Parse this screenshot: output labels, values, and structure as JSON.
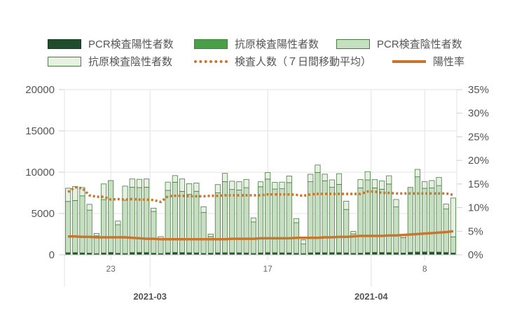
{
  "chart_data": {
    "type": "bar",
    "legend": {
      "pcr_pos": "PCR検査陽性者数",
      "ag_pos": "抗原検査陽性者数",
      "pcr_neg": "PCR検査陰性者数",
      "ag_neg": "抗原検査陰性者数",
      "tests7": "検査人数（７日間移動平均）",
      "rate": "陽性率"
    },
    "colors": {
      "pcr_pos": "#1f4d2c",
      "ag_pos": "#4a9e4a",
      "pcr_neg": "#c5dfc0",
      "ag_neg": "#e6f1e2",
      "border": "#4a7a44",
      "line": "#c8762e"
    },
    "x": [
      "2021-02-17",
      "2021-02-18",
      "2021-02-19",
      "2021-02-20",
      "2021-02-21",
      "2021-02-22",
      "2021-02-23",
      "2021-02-24",
      "2021-02-25",
      "2021-02-26",
      "2021-02-27",
      "2021-02-28",
      "2021-03-01",
      "2021-03-02",
      "2021-03-03",
      "2021-03-04",
      "2021-03-05",
      "2021-03-06",
      "2021-03-07",
      "2021-03-08",
      "2021-03-09",
      "2021-03-10",
      "2021-03-11",
      "2021-03-12",
      "2021-03-13",
      "2021-03-14",
      "2021-03-15",
      "2021-03-16",
      "2021-03-17",
      "2021-03-18",
      "2021-03-19",
      "2021-03-20",
      "2021-03-21",
      "2021-03-22",
      "2021-03-23",
      "2021-03-24",
      "2021-03-25",
      "2021-03-26",
      "2021-03-27",
      "2021-03-28",
      "2021-03-29",
      "2021-03-30",
      "2021-03-31",
      "2021-04-01",
      "2021-04-02",
      "2021-04-03",
      "2021-04-04",
      "2021-04-05",
      "2021-04-06",
      "2021-04-07",
      "2021-04-08",
      "2021-04-09",
      "2021-04-10",
      "2021-04-11",
      "2021-04-12"
    ],
    "series": [
      {
        "name": "PCR検査陽性者数",
        "values": [
          250,
          260,
          230,
          200,
          140,
          220,
          280,
          180,
          160,
          270,
          280,
          270,
          190,
          150,
          240,
          280,
          270,
          250,
          230,
          170,
          200,
          240,
          250,
          250,
          240,
          220,
          170,
          230,
          260,
          250,
          240,
          230,
          180,
          150,
          240,
          260,
          250,
          260,
          260,
          230,
          180,
          200,
          260,
          290,
          280,
          260,
          240,
          220,
          300,
          330,
          340,
          330,
          320,
          280,
          220
        ]
      },
      {
        "name": "抗原検査陽性者数",
        "values": [
          10,
          10,
          10,
          10,
          5,
          10,
          10,
          10,
          5,
          10,
          10,
          10,
          10,
          5,
          10,
          10,
          10,
          10,
          10,
          5,
          10,
          10,
          10,
          10,
          10,
          10,
          5,
          10,
          10,
          10,
          10,
          10,
          10,
          5,
          10,
          10,
          10,
          10,
          10,
          10,
          5,
          10,
          10,
          10,
          10,
          10,
          10,
          5,
          10,
          10,
          10,
          10,
          10,
          10,
          5
        ]
      },
      {
        "name": "PCR検査陰性者数",
        "values": [
          6200,
          6300,
          6900,
          5200,
          2150,
          6450,
          8700,
          3450,
          6450,
          7900,
          7850,
          7900,
          5050,
          1850,
          7550,
          8500,
          7400,
          7050,
          7450,
          4950,
          2000,
          7250,
          8600,
          7650,
          7600,
          7900,
          3800,
          8000,
          8900,
          7700,
          7750,
          8500,
          3700,
          1150,
          8600,
          9700,
          8700,
          7900,
          8250,
          5250,
          2350,
          7900,
          8800,
          7800,
          7650,
          8300,
          5550,
          1850,
          7850,
          9100,
          7700,
          7750,
          8050,
          5250,
          1950
        ]
      },
      {
        "name": "抗原検査陰性者数",
        "values": [
          1600,
          1700,
          1000,
          700,
          300,
          1900,
          0,
          450,
          1700,
          1000,
          1000,
          1000,
          400,
          200,
          1000,
          800,
          1500,
          1300,
          1000,
          700,
          300,
          1000,
          1000,
          1000,
          1000,
          1000,
          500,
          600,
          800,
          800,
          800,
          800,
          500,
          500,
          900,
          900,
          800,
          900,
          1300,
          1000,
          300,
          1000,
          1000,
          1000,
          1000,
          1000,
          900,
          400,
          0,
          900,
          800,
          900,
          1000,
          600,
          4700
        ]
      }
    ],
    "tests7": [
      13.3,
      14.3,
      14.1,
      12.6,
      12.3,
      12.3,
      11.7,
      11.8,
      11.7,
      11.8,
      11.7,
      11.7,
      11.6,
      11.2,
      12.4,
      12.5,
      12.5,
      12.4,
      12.4,
      12.4,
      12.5,
      12.5,
      12.6,
      12.6,
      12.6,
      12.6,
      12.6,
      12.6,
      12.8,
      12.8,
      12.8,
      12.8,
      12.7,
      12.5,
      12.8,
      12.9,
      12.9,
      12.9,
      12.9,
      12.9,
      12.9,
      12.9,
      13.4,
      13.4,
      13.1,
      13.1,
      13.0,
      13.0,
      13.0,
      13.0,
      13.0,
      13.0,
      13.0,
      13.0,
      12.7
    ],
    "rate": [
      3.9,
      3.9,
      3.8,
      3.8,
      3.7,
      3.7,
      3.7,
      3.7,
      3.7,
      3.6,
      3.5,
      3.4,
      3.4,
      3.3,
      3.3,
      3.3,
      3.3,
      3.3,
      3.3,
      3.3,
      3.3,
      3.3,
      3.3,
      3.4,
      3.4,
      3.4,
      3.4,
      3.5,
      3.5,
      3.5,
      3.5,
      3.5,
      3.6,
      3.6,
      3.6,
      3.6,
      3.7,
      3.7,
      3.8,
      3.8,
      3.9,
      4.0,
      4.0,
      4.0,
      4.0,
      4.1,
      4.1,
      4.2,
      4.3,
      4.4,
      4.5,
      4.6,
      4.7,
      4.8,
      5.0
    ],
    "ylim": [
      0,
      20000
    ],
    "y_ticks": [
      "0",
      "5000",
      "10000",
      "15000",
      "20000"
    ],
    "y2lim": [
      0,
      35
    ],
    "y2_ticks": [
      "0%",
      "5%",
      "10%",
      "15%",
      "20%",
      "25%",
      "30%",
      "35%"
    ],
    "x_ticks": [
      {
        "label": "23",
        "date": "2021-02-23"
      },
      {
        "label": "17",
        "date": "2021-03-17"
      },
      {
        "label": "8",
        "date": "2021-04-08"
      }
    ],
    "x_months": [
      {
        "label": "2021-03",
        "date": "2021-02-28"
      },
      {
        "label": "2021-04",
        "date": "2021-03-31"
      }
    ],
    "grid": true,
    "legend_position": "top"
  }
}
